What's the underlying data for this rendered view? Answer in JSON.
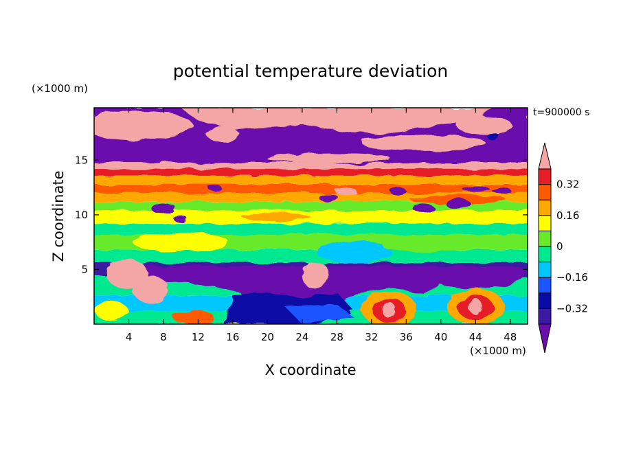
{
  "chart_data": {
    "type": "heatmap",
    "title": "potential temperature deviation",
    "xlabel": "X coordinate",
    "ylabel": "Z coordinate",
    "x_unit": "(×1000 m)",
    "y_unit": "(×1000 m)",
    "time_label": "t=900000 s",
    "xlim": [
      0,
      50
    ],
    "ylim": [
      0,
      19.8
    ],
    "x_ticks": [
      4,
      8,
      12,
      16,
      20,
      24,
      28,
      32,
      36,
      40,
      44,
      48
    ],
    "y_ticks": [
      5,
      10,
      15
    ],
    "colorbar": {
      "levels": [
        -0.4,
        -0.32,
        -0.24,
        -0.16,
        -0.08,
        0,
        0.08,
        0.16,
        0.24,
        0.32,
        0.4
      ],
      "labels": [
        "0.32",
        "0.16",
        "0",
        "−0.16",
        "−0.32"
      ],
      "label_values": [
        0.32,
        0.16,
        0,
        -0.16,
        -0.32
      ],
      "colors": [
        "#6a0dad",
        "#3a1aa0",
        "#0a0aa6",
        "#1a55ff",
        "#00c8ff",
        "#00e890",
        "#66ea2a",
        "#ffff00",
        "#ffa800",
        "#ff5a00",
        "#e61e28",
        "#f4a5a5"
      ],
      "extend": "both"
    }
  }
}
